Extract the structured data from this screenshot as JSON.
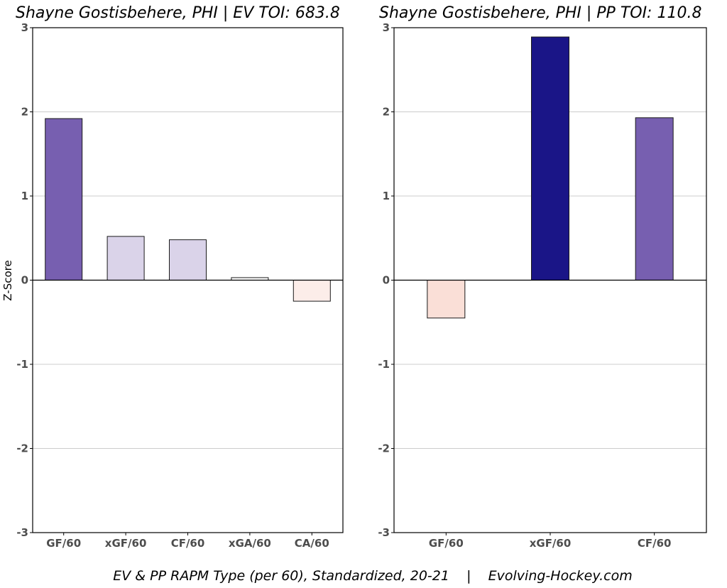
{
  "chart_data": [
    {
      "type": "bar",
      "title": "Shayne Gostisbehere, PHI  |  EV TOI: 683.8",
      "ylabel": "Z-Score",
      "ylim": [
        -3,
        3
      ],
      "yticks": [
        "-3",
        "-2",
        "-1",
        "0",
        "1",
        "2",
        "3"
      ],
      "grid": "horizontal",
      "categories": [
        "GF/60",
        "xGF/60",
        "CF/60",
        "xGA/60",
        "CA/60"
      ],
      "values": [
        1.92,
        0.52,
        0.48,
        0.03,
        -0.25
      ],
      "colors": [
        "#775fb0",
        "#dad3e9",
        "#dad3e9",
        "#ffffff",
        "#fcede9"
      ]
    },
    {
      "type": "bar",
      "title": "Shayne Gostisbehere, PHI  |  PP TOI: 110.8",
      "ylabel": "",
      "ylim": [
        -3,
        3
      ],
      "yticks": [
        "-3",
        "-2",
        "-1",
        "0",
        "1",
        "2",
        "3"
      ],
      "grid": "horizontal",
      "categories": [
        "GF/60",
        "xGF/60",
        "CF/60"
      ],
      "values": [
        -0.45,
        2.89,
        1.93
      ],
      "colors": [
        "#fadfd7",
        "#1a1587",
        "#775fb0"
      ]
    }
  ],
  "caption": "EV & PP RAPM Type (per 60), Standardized, 20-21    |    Evolving-Hockey.com"
}
